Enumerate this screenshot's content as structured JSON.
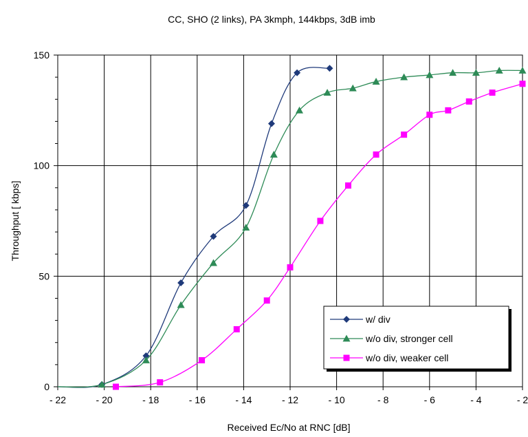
{
  "chart_data": {
    "type": "line",
    "title": "CC, SHO (2 links), PA 3kmph, 144kbps, 3dB imb",
    "xlabel": "Received Ec/No at RNC [dB]",
    "ylabel": "Throughput [ kbps]",
    "xlim": [
      -22,
      -2
    ],
    "ylim": [
      0,
      150
    ],
    "xticks": [
      -22,
      -20,
      -18,
      -16,
      -14,
      -12,
      -10,
      -8,
      -6,
      -4,
      -2
    ],
    "xtick_labels": [
      "- 22",
      "- 20",
      "- 18",
      "- 16",
      "- 14",
      "- 12",
      "- 10",
      "- 8",
      "- 6",
      "- 4",
      "- 2"
    ],
    "yticks": [
      0,
      50,
      100,
      150
    ],
    "ytick_labels": [
      "0",
      "50",
      "100",
      "150"
    ],
    "grid": true,
    "legend_position": "bottom-right",
    "series": [
      {
        "name": "w/ div",
        "color": "#1f3a7a",
        "marker": "diamond",
        "points": [
          [
            -22,
            0
          ],
          [
            -20.1,
            1
          ],
          [
            -18.2,
            14
          ],
          [
            -16.7,
            47
          ],
          [
            -15.3,
            68
          ],
          [
            -13.9,
            82
          ],
          [
            -12.8,
            119
          ],
          [
            -11.7,
            142
          ],
          [
            -10.3,
            144
          ]
        ]
      },
      {
        "name": "w/o div, stronger cell",
        "color": "#2e8b57",
        "marker": "triangle",
        "points": [
          [
            -22,
            0
          ],
          [
            -20.1,
            1
          ],
          [
            -18.2,
            12
          ],
          [
            -16.7,
            37
          ],
          [
            -15.3,
            56
          ],
          [
            -13.9,
            72
          ],
          [
            -12.7,
            105
          ],
          [
            -11.6,
            125
          ],
          [
            -10.4,
            133
          ],
          [
            -9.3,
            135
          ],
          [
            -8.3,
            138
          ],
          [
            -7.1,
            140
          ],
          [
            -6,
            141
          ],
          [
            -5,
            142
          ],
          [
            -4,
            142
          ],
          [
            -3,
            143
          ],
          [
            -2,
            143
          ]
        ]
      },
      {
        "name": "w/o div, weaker cell",
        "color": "#ff00ff",
        "marker": "square",
        "points": [
          [
            -19.5,
            0
          ],
          [
            -17.6,
            2
          ],
          [
            -15.8,
            12
          ],
          [
            -14.3,
            26
          ],
          [
            -13,
            39
          ],
          [
            -12,
            54
          ],
          [
            -10.7,
            75
          ],
          [
            -9.5,
            91
          ],
          [
            -8.3,
            105
          ],
          [
            -7.1,
            114
          ],
          [
            -6,
            123
          ],
          [
            -5.2,
            125
          ],
          [
            -4.3,
            129
          ],
          [
            -3.3,
            133
          ],
          [
            -2,
            137
          ]
        ]
      }
    ]
  }
}
